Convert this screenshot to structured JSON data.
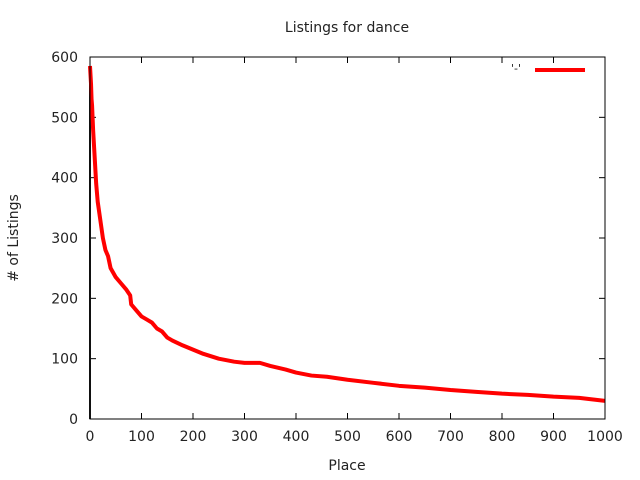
{
  "chart_data": {
    "type": "line",
    "title": "Listings for dance",
    "xlabel": "Place",
    "ylabel": "# of Listings",
    "xlim": [
      0,
      1000
    ],
    "ylim": [
      0,
      600
    ],
    "xticks": [
      0,
      100,
      200,
      300,
      400,
      500,
      600,
      700,
      800,
      900,
      1000
    ],
    "yticks": [
      0,
      100,
      200,
      300,
      400,
      500,
      600
    ],
    "grid": false,
    "legend_position": "top-right",
    "series": [
      {
        "name": "'-'",
        "color": "#ff0000",
        "x": [
          0,
          1,
          2,
          3,
          4,
          5,
          6,
          8,
          10,
          12,
          15,
          20,
          25,
          30,
          35,
          40,
          50,
          60,
          70,
          78,
          80,
          90,
          100,
          110,
          120,
          130,
          140,
          150,
          160,
          180,
          200,
          220,
          250,
          280,
          300,
          330,
          350,
          380,
          400,
          430,
          460,
          500,
          550,
          600,
          650,
          700,
          750,
          800,
          850,
          900,
          950,
          1000
        ],
        "y": [
          585,
          570,
          555,
          530,
          520,
          500,
          480,
          450,
          420,
          390,
          360,
          330,
          300,
          280,
          270,
          250,
          235,
          225,
          215,
          205,
          190,
          180,
          170,
          165,
          160,
          150,
          145,
          135,
          130,
          122,
          115,
          108,
          100,
          95,
          93,
          93,
          88,
          82,
          77,
          72,
          70,
          65,
          60,
          55,
          52,
          48,
          45,
          42,
          40,
          37,
          35,
          30
        ]
      }
    ]
  }
}
